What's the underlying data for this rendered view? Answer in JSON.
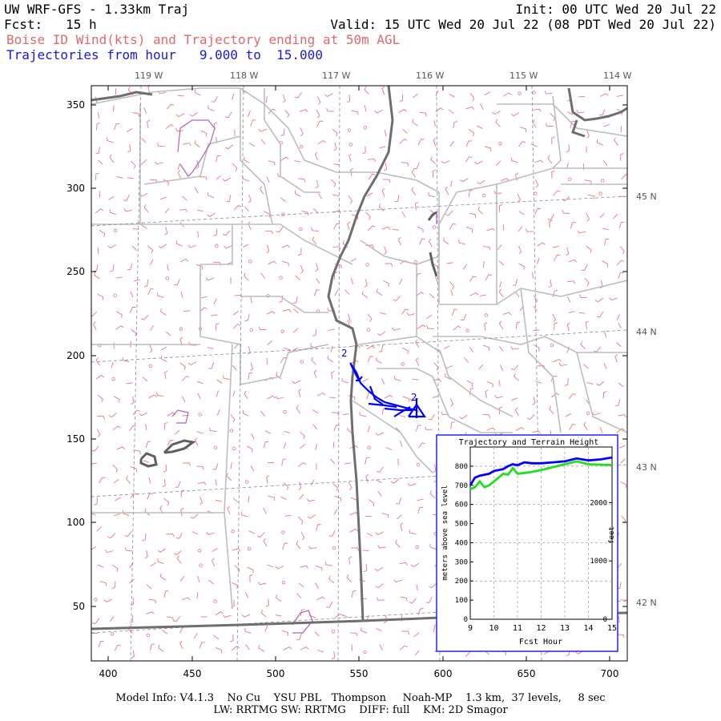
{
  "header": {
    "title": "UW WRF-GFS - 1.33km Traj",
    "init": "Init: 00 UTC Wed 20 Jul 22",
    "fcst": "Fcst:   15 h",
    "valid": "Valid: 15 UTC Wed 20 Jul 22 (08 PDT Wed 20 Jul 22)",
    "subtitle_red": "Boise ID Wind(kts) and Trajectory ending at 50m AGL",
    "subtitle_blue": "Trajectories from hour   9.000 to  15.000"
  },
  "map": {
    "x_ticks": [
      "400",
      "450",
      "500",
      "550",
      "600",
      "650",
      "700"
    ],
    "y_ticks": [
      "50",
      "100",
      "150",
      "200",
      "250",
      "300",
      "350"
    ],
    "lon_labels": [
      "119 W",
      "118 W",
      "117 W",
      "116 W",
      "115 W",
      "114 W"
    ],
    "lat_labels": [
      "45 N",
      "44 N",
      "43 N",
      "42 N"
    ],
    "trajectory_start_label": "2",
    "trajectory_end_label": "2",
    "colors": {
      "wind_barbs": "#e87878",
      "state_borders": "#7a7a7a",
      "county_lines": "#bdbdbd",
      "trajectory": "#0000ff",
      "terrain": "#22dd22",
      "water": "#b060c0"
    }
  },
  "inset": {
    "title": "Trajectory and Terrain Height",
    "ylabel_left": "meters above sea level",
    "ylabel_right": "feet",
    "xlabel": "Fcst Hour",
    "x_ticks": [
      "9",
      "10",
      "11",
      "12",
      "13",
      "14",
      "15"
    ],
    "y_ticks_m": [
      "0",
      "100",
      "200",
      "300",
      "400",
      "500",
      "600",
      "700",
      "800"
    ],
    "y_ticks_ft": [
      "0",
      "1000",
      "2000"
    ]
  },
  "chart_data": {
    "type": "line",
    "title": "Trajectory and Terrain Height",
    "xlabel": "Fcst Hour",
    "ylabel": "meters above sea level",
    "xlim": [
      9,
      15
    ],
    "ylim": [
      0,
      900
    ],
    "grid": true,
    "series": [
      {
        "name": "",
        "color": "#0000ff",
        "x": [
          9.0,
          9.2,
          9.4,
          9.6,
          9.8,
          10.0,
          10.2,
          10.4,
          10.6,
          10.8,
          11.0,
          11.3,
          11.6,
          12.0,
          12.5,
          13.0,
          13.5,
          14.0,
          14.5,
          15.0
        ],
        "values": [
          700,
          740,
          750,
          755,
          760,
          775,
          780,
          785,
          800,
          810,
          805,
          820,
          815,
          815,
          820,
          825,
          840,
          830,
          835,
          845
        ]
      },
      {
        "name": "",
        "color": "#22dd22",
        "x": [
          9.0,
          9.2,
          9.4,
          9.6,
          9.8,
          10.0,
          10.2,
          10.4,
          10.6,
          10.8,
          11.0,
          11.3,
          11.6,
          12.0,
          12.5,
          13.0,
          13.5,
          14.0,
          14.5,
          15.0
        ],
        "values": [
          680,
          690,
          720,
          690,
          700,
          720,
          740,
          760,
          755,
          790,
          760,
          765,
          770,
          780,
          795,
          810,
          825,
          810,
          808,
          806
        ]
      }
    ]
  },
  "footer": {
    "line1": "Model Info: V4.1.3    No Cu    YSU PBL   Thompson     Noah-MP    1.3 km,  37 levels,     8 sec",
    "line2": "LW: RRTMG SW: RRTMG    DIFF: full    KM: 2D Smagor"
  }
}
